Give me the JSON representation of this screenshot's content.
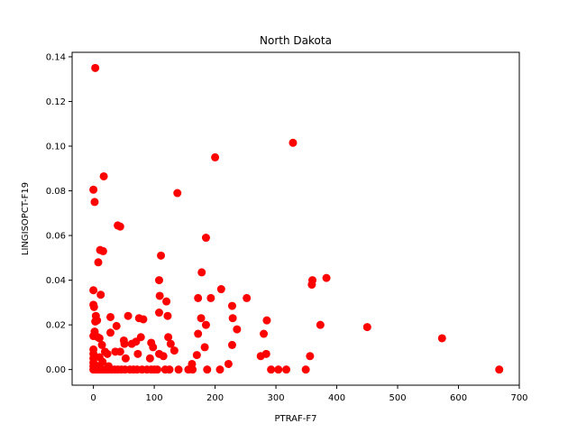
{
  "chart_data": {
    "type": "scatter",
    "title": "North Dakota",
    "xlabel": "PTRAF-F7",
    "ylabel": "LINGISOPCT-F19",
    "xlim": [
      -35,
      700
    ],
    "ylim": [
      -0.007,
      0.142
    ],
    "xticks": [
      0,
      100,
      200,
      300,
      400,
      500,
      600,
      700
    ],
    "yticks": [
      0.0,
      0.02,
      0.04,
      0.06,
      0.08,
      0.1,
      0.12,
      0.14
    ],
    "xtick_labels": [
      "0",
      "100",
      "200",
      "300",
      "400",
      "500",
      "600",
      "700"
    ],
    "ytick_labels": [
      "0.00",
      "0.02",
      "0.04",
      "0.06",
      "0.08",
      "0.10",
      "0.12",
      "0.14"
    ],
    "grid": false,
    "marker_color": "#ff0000",
    "series": [
      {
        "points": [
          [
            3,
            0.135
          ],
          [
            328,
            0.1015
          ],
          [
            200,
            0.095
          ],
          [
            17,
            0.0865
          ],
          [
            0,
            0.0805
          ],
          [
            138,
            0.079
          ],
          [
            2,
            0.075
          ],
          [
            40,
            0.0645
          ],
          [
            44,
            0.064
          ],
          [
            185,
            0.059
          ],
          [
            11,
            0.0535
          ],
          [
            16,
            0.053
          ],
          [
            111,
            0.051
          ],
          [
            8,
            0.048
          ],
          [
            178,
            0.0435
          ],
          [
            383,
            0.041
          ],
          [
            360,
            0.04
          ],
          [
            108,
            0.04
          ],
          [
            359,
            0.038
          ],
          [
            210,
            0.036
          ],
          [
            0,
            0.0355
          ],
          [
            12,
            0.0335
          ],
          [
            109,
            0.033
          ],
          [
            172,
            0.032
          ],
          [
            193,
            0.032
          ],
          [
            252,
            0.032
          ],
          [
            120,
            0.0305
          ],
          [
            0,
            0.029
          ],
          [
            1,
            0.028
          ],
          [
            228,
            0.0285
          ],
          [
            108,
            0.0255
          ],
          [
            4,
            0.024
          ],
          [
            28,
            0.0235
          ],
          [
            57,
            0.024
          ],
          [
            75,
            0.023
          ],
          [
            82,
            0.0225
          ],
          [
            122,
            0.024
          ],
          [
            177,
            0.023
          ],
          [
            229,
            0.023
          ],
          [
            285,
            0.022
          ],
          [
            3,
            0.0215
          ],
          [
            6,
            0.022
          ],
          [
            38,
            0.0195
          ],
          [
            185,
            0.02
          ],
          [
            373,
            0.02
          ],
          [
            450,
            0.019
          ],
          [
            236,
            0.018
          ],
          [
            2,
            0.017
          ],
          [
            28,
            0.0165
          ],
          [
            172,
            0.016
          ],
          [
            280,
            0.016
          ],
          [
            0,
            0.015
          ],
          [
            7,
            0.0145
          ],
          [
            10,
            0.014
          ],
          [
            78,
            0.0145
          ],
          [
            123,
            0.0145
          ],
          [
            573,
            0.014
          ],
          [
            50,
            0.013
          ],
          [
            95,
            0.012
          ],
          [
            51,
            0.0115
          ],
          [
            127,
            0.0115
          ],
          [
            63,
            0.0115
          ],
          [
            183,
            0.01
          ],
          [
            228,
            0.011
          ],
          [
            98,
            0.01
          ],
          [
            14,
            0.011
          ],
          [
            70,
            0.0125
          ],
          [
            0,
            0.009
          ],
          [
            19,
            0.008
          ],
          [
            36,
            0.008
          ],
          [
            44,
            0.008
          ],
          [
            133,
            0.0085
          ],
          [
            0,
            0.007
          ],
          [
            23,
            0.007
          ],
          [
            73,
            0.007
          ],
          [
            108,
            0.007
          ],
          [
            115,
            0.006
          ],
          [
            170,
            0.0065
          ],
          [
            284,
            0.007
          ],
          [
            275,
            0.006
          ],
          [
            356,
            0.006
          ],
          [
            0,
            0.005
          ],
          [
            10,
            0.0055
          ],
          [
            53,
            0.005
          ],
          [
            93,
            0.005
          ],
          [
            162,
            0.0025
          ],
          [
            222,
            0.0025
          ],
          [
            0,
            0.003
          ],
          [
            3,
            0.002
          ],
          [
            15,
            0.0035
          ],
          [
            0,
            0.0015
          ],
          [
            8,
            0.0015
          ],
          [
            25,
            0.0015
          ],
          [
            0,
            0.0
          ],
          [
            2,
            0.0
          ],
          [
            4,
            0.0
          ],
          [
            6,
            0.0
          ],
          [
            8,
            0.0
          ],
          [
            10,
            0.0
          ],
          [
            12,
            0.0
          ],
          [
            14,
            0.0
          ],
          [
            17,
            0.0
          ],
          [
            20,
            0.0
          ],
          [
            23,
            0.0
          ],
          [
            26,
            0.0
          ],
          [
            30,
            0.0
          ],
          [
            35,
            0.0
          ],
          [
            40,
            0.0
          ],
          [
            46,
            0.0
          ],
          [
            52,
            0.0
          ],
          [
            60,
            0.0
          ],
          [
            66,
            0.0
          ],
          [
            72,
            0.0
          ],
          [
            80,
            0.0
          ],
          [
            88,
            0.0
          ],
          [
            95,
            0.0
          ],
          [
            100,
            0.0
          ],
          [
            105,
            0.0
          ],
          [
            118,
            0.0
          ],
          [
            125,
            0.0
          ],
          [
            140,
            0.0
          ],
          [
            156,
            0.0
          ],
          [
            163,
            0.0
          ],
          [
            187,
            0.0
          ],
          [
            208,
            0.0
          ],
          [
            292,
            0.0
          ],
          [
            304,
            0.0
          ],
          [
            317,
            0.0
          ],
          [
            349,
            0.0
          ],
          [
            667,
            0.0
          ]
        ]
      }
    ]
  }
}
